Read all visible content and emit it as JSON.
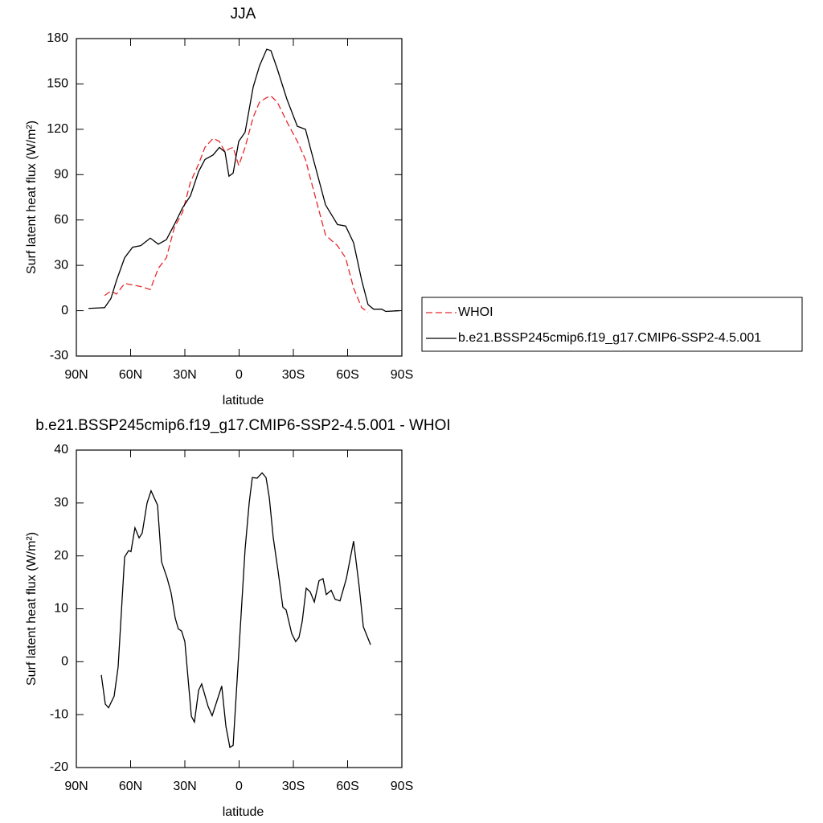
{
  "chart_data": [
    {
      "type": "line",
      "title": "JJA",
      "xlabel": "latitude",
      "ylabel": "Surf latent heat flux (W/m²)",
      "xlim": [
        90,
        -90
      ],
      "xticks": [
        {
          "value": 90,
          "label": "90N"
        },
        {
          "value": 60,
          "label": "60N"
        },
        {
          "value": 30,
          "label": "30N"
        },
        0,
        {
          "value": -30,
          "label": "30S"
        },
        {
          "value": -60,
          "label": "60S"
        },
        {
          "value": -90,
          "label": "90S"
        }
      ],
      "ylim": [
        -30,
        180
      ],
      "yticks": [
        -30,
        0,
        30,
        60,
        90,
        120,
        150,
        180
      ],
      "legend": "right",
      "x": [
        83.3,
        74.4,
        70.9,
        67.8,
        63.3,
        58.9,
        54.4,
        49.1,
        44.7,
        40.2,
        35.8,
        31.3,
        26.9,
        22.4,
        18.9,
        14.4,
        10.9,
        7.8,
        5.6,
        3.3,
        0.2,
        -3.3,
        -7.8,
        -11.3,
        -15.3,
        -17.6,
        -21.1,
        -26.4,
        -32.2,
        -36.7,
        -41.1,
        -47.8,
        -54.4,
        -58.9,
        -63.3,
        -67.8,
        -71.3,
        -74.4,
        -78.9,
        -81.1,
        -88.7
      ],
      "series": [
        {
          "name": "WHOI",
          "color": "#e8262b",
          "linestyle": "dashed",
          "values": [
            null,
            10,
            13,
            11,
            18,
            17,
            16,
            14,
            28,
            35,
            55,
            65,
            85,
            97,
            108,
            114,
            112,
            105,
            107,
            108,
            96,
            108,
            128,
            138,
            141,
            142,
            138,
            125,
            112,
            100,
            80,
            50,
            43,
            35,
            15,
            2,
            -1,
            null,
            null,
            null,
            null
          ]
        },
        {
          "name": "b.e21.BSSP245cmip6.f19_g17.CMIP6-SSP2-4.5.001",
          "color": "#000000",
          "linestyle": "solid",
          "values": [
            1.5,
            2,
            8,
            20,
            35,
            42,
            43,
            48,
            44,
            47,
            57,
            68,
            76,
            92,
            100,
            103,
            108,
            105,
            89,
            91,
            112,
            118,
            148,
            162,
            173,
            172,
            160,
            140,
            122,
            120,
            100,
            70,
            57,
            56,
            45,
            20,
            4,
            1,
            1,
            -0.5,
            0
          ]
        }
      ]
    },
    {
      "type": "line",
      "title": "b.e21.BSSP245cmip6.f19_g17.CMIP6-SSP2-4.5.001 - WHOI",
      "xlabel": "latitude",
      "ylabel": "Surf latent heat flux (W/m²)",
      "xlim": [
        90,
        -90
      ],
      "xticks": [
        {
          "value": 90,
          "label": "90N"
        },
        {
          "value": 60,
          "label": "60N"
        },
        {
          "value": 30,
          "label": "30N"
        },
        0,
        {
          "value": -30,
          "label": "30S"
        },
        {
          "value": -60,
          "label": "60S"
        },
        {
          "value": -90,
          "label": "90S"
        }
      ],
      "ylim": [
        -20,
        40
      ],
      "yticks": [
        -20,
        -10,
        0,
        10,
        20,
        30,
        40
      ],
      "x": [
        76.2,
        74,
        72.2,
        69.1,
        66.9,
        63.3,
        61.1,
        59.8,
        57.6,
        55.3,
        53.6,
        50.9,
        48.7,
        45.1,
        42.9,
        39.8,
        37.6,
        35.3,
        33.6,
        31.8,
        30,
        26.4,
        24.7,
        22.4,
        20.7,
        17.1,
        14.9,
        9.6,
        7.3,
        5.1,
        3.3,
        -3.3,
        -5.6,
        -7.3,
        -10,
        -12.7,
        -14.9,
        -16.7,
        -18.9,
        -21.6,
        -24.2,
        -26,
        -29.1,
        -31.3,
        -33.1,
        -34.9,
        -37.1,
        -39.3,
        -41.6,
        -44.2,
        -46.4,
        -48.2,
        -50.9,
        -53.1,
        -55.8,
        -59.3,
        -63.3,
        -66.4,
        -68.7,
        -72.7
      ],
      "series": [
        {
          "color": "#000000",
          "linestyle": "solid",
          "values": [
            -2.5,
            -8,
            -8.7,
            -6.5,
            -1,
            19.8,
            21,
            20.8,
            25.3,
            23.4,
            24.3,
            30,
            32.3,
            29.6,
            18.9,
            15.8,
            13,
            8.2,
            6.2,
            5.8,
            3.8,
            -10.3,
            -11.4,
            -5.4,
            -4.2,
            -8.5,
            -10.2,
            -4.6,
            -12.2,
            -16.2,
            -15.8,
            21.2,
            30.1,
            34.8,
            34.7,
            35.7,
            34.8,
            31,
            23.4,
            17,
            10.3,
            9.8,
            5.3,
            3.8,
            4.6,
            7.6,
            13.9,
            13.2,
            11.3,
            15.3,
            15.7,
            12.7,
            13.5,
            11.8,
            11.5,
            15.7,
            22.8,
            14.2,
            6.6,
            3.2
          ]
        }
      ]
    }
  ]
}
